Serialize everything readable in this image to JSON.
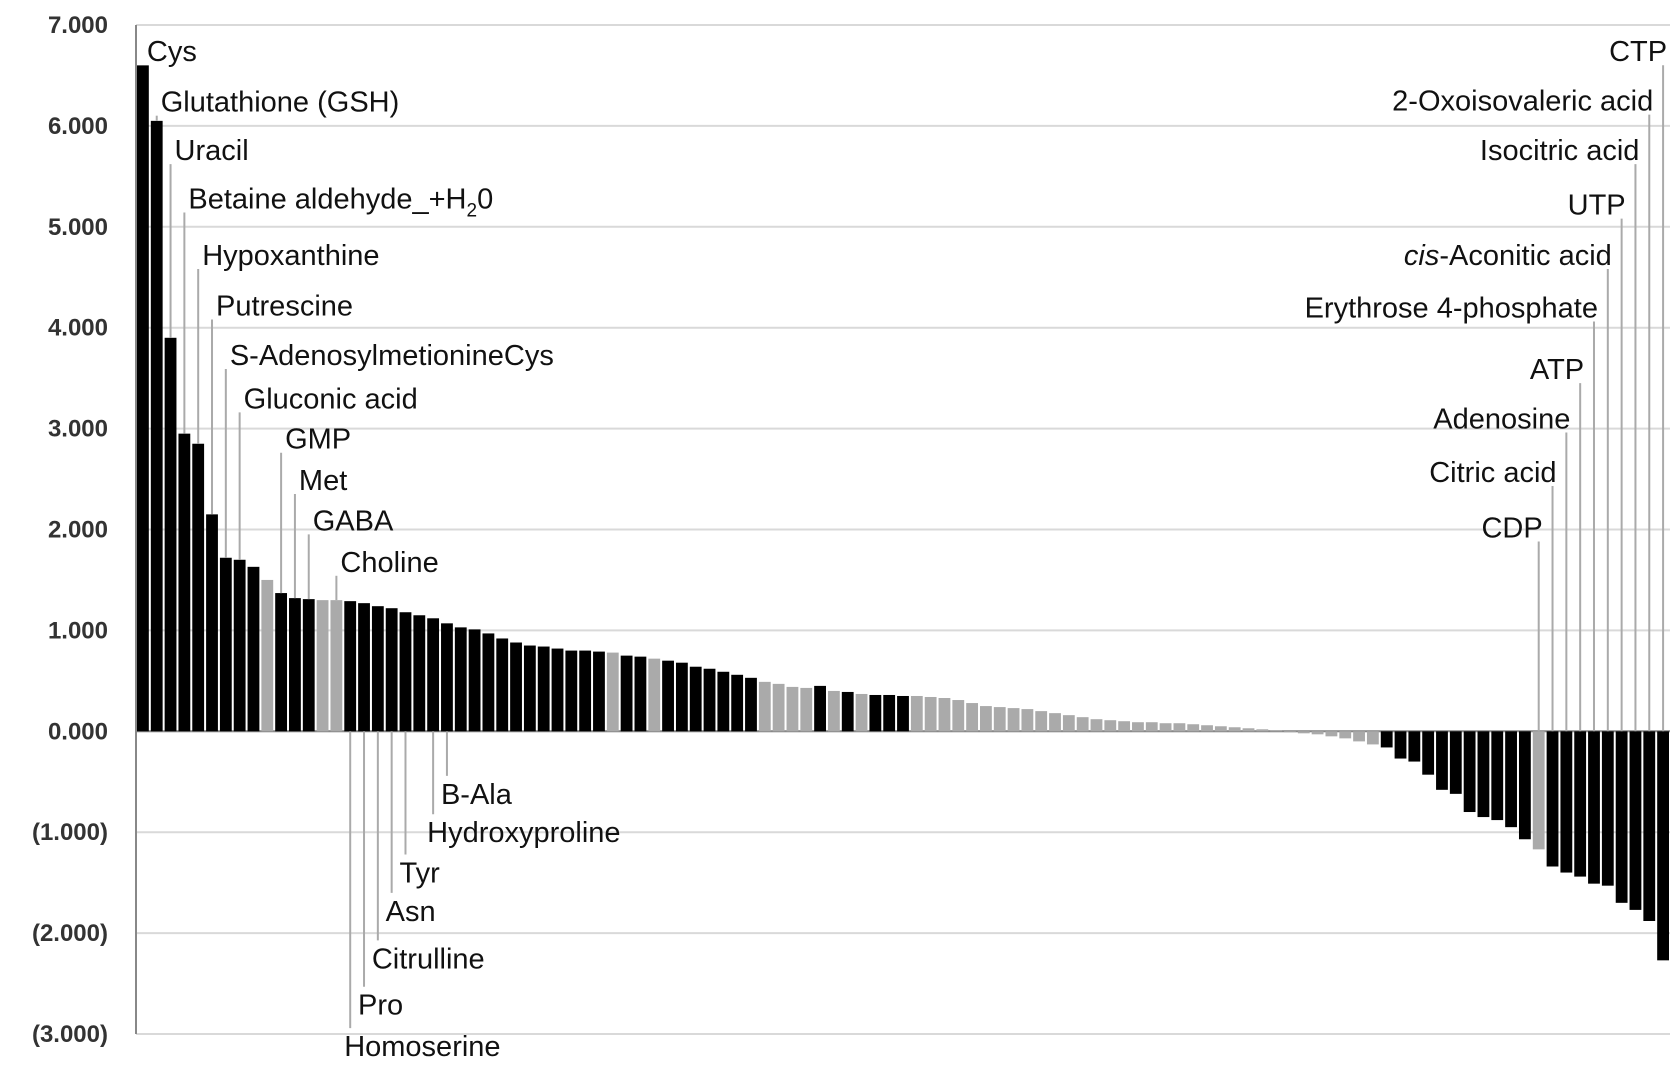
{
  "chart_data": {
    "type": "bar",
    "title": "",
    "xlabel": "",
    "ylabel": "",
    "ylim": [
      -3,
      7
    ],
    "y_tick_labels": [
      "7.000",
      "6.000",
      "5.000",
      "4.000",
      "3.000",
      "2.000",
      "1.000",
      "0.000",
      "(1.000)",
      "(2.000)",
      "(3.000)"
    ],
    "grid": true,
    "legend": "none",
    "colors": {
      "dark": "#000000",
      "light": "#aaaaaa",
      "grid": "#d9d9d9",
      "axis": "#888888"
    },
    "values": [
      6.6,
      6.05,
      3.9,
      2.95,
      2.85,
      2.15,
      1.72,
      1.7,
      1.63,
      1.5,
      1.37,
      1.32,
      1.31,
      1.3,
      1.3,
      1.29,
      1.27,
      1.24,
      1.22,
      1.18,
      1.15,
      1.12,
      1.07,
      1.03,
      1.01,
      0.97,
      0.92,
      0.88,
      0.85,
      0.84,
      0.82,
      0.8,
      0.8,
      0.79,
      0.78,
      0.75,
      0.74,
      0.72,
      0.7,
      0.68,
      0.64,
      0.62,
      0.59,
      0.56,
      0.53,
      0.49,
      0.47,
      0.44,
      0.43,
      0.45,
      0.4,
      0.39,
      0.37,
      0.36,
      0.36,
      0.35,
      0.35,
      0.34,
      0.33,
      0.31,
      0.28,
      0.25,
      0.24,
      0.23,
      0.22,
      0.2,
      0.18,
      0.16,
      0.14,
      0.12,
      0.11,
      0.1,
      0.09,
      0.09,
      0.08,
      0.08,
      0.07,
      0.06,
      0.05,
      0.04,
      0.03,
      0.02,
      0.01,
      -0.01,
      -0.02,
      -0.03,
      -0.05,
      -0.07,
      -0.1,
      -0.13,
      -0.16,
      -0.27,
      -0.3,
      -0.43,
      -0.58,
      -0.62,
      -0.8,
      -0.85,
      -0.88,
      -0.95,
      -1.07,
      -1.17,
      -1.34,
      -1.4,
      -1.44,
      -1.51,
      -1.53,
      -1.7,
      -1.77,
      -1.88,
      -2.27
    ],
    "highlighted_light_indices": [
      9,
      13,
      14,
      34,
      37,
      45,
      46,
      47,
      48,
      50,
      52,
      56,
      57,
      58,
      59,
      60,
      61,
      62,
      63,
      64,
      65,
      66,
      67,
      68,
      69,
      70,
      71,
      72,
      73,
      74,
      75,
      76,
      77,
      78,
      79,
      80,
      81,
      82,
      83,
      84,
      85,
      86,
      87,
      88,
      89,
      101
    ],
    "annotations_above": [
      {
        "text": "Cys",
        "bar": 0,
        "label_y": 6.74
      },
      {
        "text": "Glutathione (GSH)",
        "bar": 1,
        "label_y": 6.24
      },
      {
        "text": "Uracil",
        "bar": 2,
        "label_y": 5.76
      },
      {
        "text": "Betaine aldehyde_+H",
        "sub": "2",
        "tail": "0",
        "bar": 3,
        "label_y": 5.28
      },
      {
        "text": "Hypoxanthine",
        "bar": 4,
        "label_y": 4.72
      },
      {
        "text": "Putrescine",
        "bar": 5,
        "label_y": 4.22
      },
      {
        "text": "S-AdenosylmetionineCys",
        "bar": 6,
        "label_y": 3.73
      },
      {
        "text": "Gluconic acid",
        "bar": 7,
        "label_y": 3.3
      },
      {
        "text": "GMP",
        "bar": 10,
        "label_y": 2.9
      },
      {
        "text": "Met",
        "bar": 11,
        "label_y": 2.49
      },
      {
        "text": "GABA",
        "bar": 12,
        "label_y": 2.09
      },
      {
        "text": "Choline",
        "bar": 14,
        "label_y": 1.68
      }
    ],
    "annotations_below": [
      {
        "text": "B-Ala",
        "bar": 22,
        "label_y": -0.62
      },
      {
        "text": "Hydroxyproline",
        "bar": 21,
        "label_y": -1.0
      },
      {
        "text": "Tyr",
        "bar": 19,
        "label_y": -1.4
      },
      {
        "text": "Asn",
        "bar": 18,
        "label_y": -1.78
      },
      {
        "text": "Citrulline",
        "bar": 17,
        "label_y": -2.25
      },
      {
        "text": "Pro",
        "bar": 16,
        "label_y": -2.71
      },
      {
        "text": "Homoserine",
        "bar": 15,
        "label_y": -3.12
      }
    ],
    "annotations_right": [
      {
        "text": "CTP",
        "bar": 110,
        "label_y": 6.74
      },
      {
        "text": "2-Oxoisovaleric acid",
        "bar": 109,
        "label_y": 6.25
      },
      {
        "text": "Isocitric acid",
        "bar": 108,
        "label_y": 5.76
      },
      {
        "text": "UTP",
        "bar": 107,
        "label_y": 5.22
      },
      {
        "text": "-Aconitic acid",
        "italic_prefix": "cis",
        "bar": 106,
        "label_y": 4.72
      },
      {
        "text": "Erythrose 4-phosphate",
        "bar": 105,
        "label_y": 4.2
      },
      {
        "text": "ATP",
        "bar": 104,
        "label_y": 3.59
      },
      {
        "text": "Adenosine",
        "bar": 103,
        "label_y": 3.1
      },
      {
        "text": "Citric acid",
        "bar": 102,
        "label_y": 2.57
      },
      {
        "text": "CDP",
        "bar": 101,
        "label_y": 2.02
      }
    ]
  }
}
